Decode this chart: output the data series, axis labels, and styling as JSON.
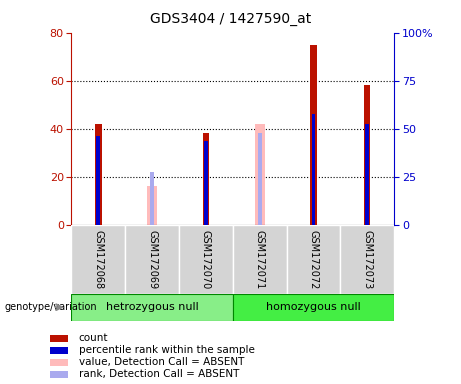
{
  "title": "GDS3404 / 1427590_at",
  "samples": [
    "GSM172068",
    "GSM172069",
    "GSM172070",
    "GSM172071",
    "GSM172072",
    "GSM172073"
  ],
  "count_values": [
    42,
    null,
    38,
    null,
    75,
    58
  ],
  "rank_values": [
    37,
    null,
    35,
    null,
    46,
    42
  ],
  "absent_value": [
    null,
    16,
    null,
    42,
    null,
    null
  ],
  "absent_rank": [
    null,
    22,
    null,
    38,
    null,
    null
  ],
  "left_ylim": [
    0,
    80
  ],
  "right_ylim": [
    0,
    100
  ],
  "left_yticks": [
    0,
    20,
    40,
    60,
    80
  ],
  "right_yticks": [
    0,
    25,
    50,
    75,
    100
  ],
  "right_yticklabels": [
    "0",
    "25",
    "50",
    "75",
    "100%"
  ],
  "groups": [
    {
      "label": "hetrozygous null",
      "indices": [
        0,
        1,
        2
      ],
      "color": "#88ee88"
    },
    {
      "label": "homozygous null",
      "indices": [
        3,
        4,
        5
      ],
      "color": "#44ee44"
    }
  ],
  "bar_color_red": "#bb1100",
  "bar_color_blue": "#0000cc",
  "bar_color_pink": "#ffbbbb",
  "bar_color_light_blue": "#aaaaee",
  "legend_items": [
    {
      "color": "#bb1100",
      "label": "count"
    },
    {
      "color": "#0000cc",
      "label": "percentile rank within the sample"
    },
    {
      "color": "#ffbbbb",
      "label": "value, Detection Call = ABSENT"
    },
    {
      "color": "#aaaaee",
      "label": "rank, Detection Call = ABSENT"
    }
  ]
}
